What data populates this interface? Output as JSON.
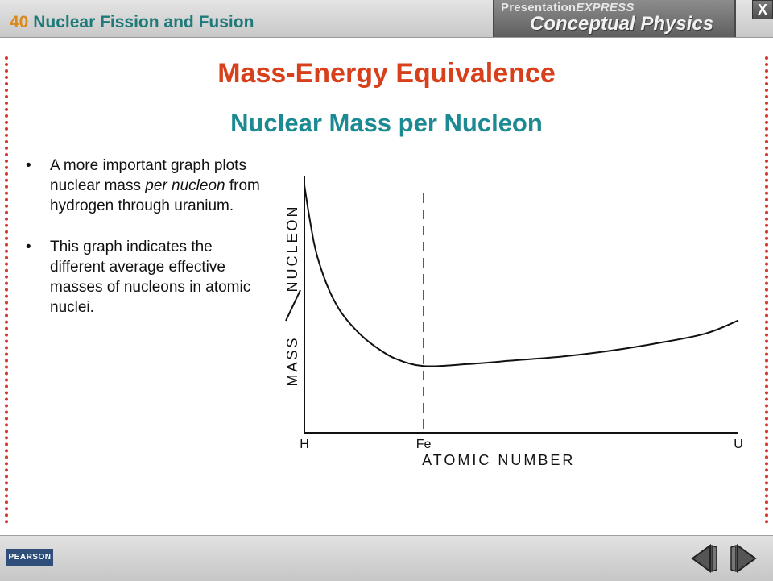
{
  "header": {
    "chapter_number": "40",
    "chapter_title": "Nuclear Fission and Fusion",
    "brand_top_a": "Presentation",
    "brand_top_b": "EXPRESS",
    "brand_main": "Conceptual Physics",
    "close_label": "X"
  },
  "slide": {
    "title": "Mass-Energy Equivalence",
    "subtitle": "Nuclear Mass per Nucleon",
    "bullets": [
      {
        "bullet": "•",
        "parts": [
          "A more important graph plots nuclear mass ",
          "per nucleon",
          " from hydrogen through uranium."
        ]
      },
      {
        "bullet": "•",
        "parts": [
          "This graph indicates the different average effective masses of nucleons in atomic nuclei."
        ]
      }
    ]
  },
  "chart_data": {
    "type": "line",
    "title": "",
    "xlabel": "ATOMIC NUMBER",
    "ylabel": "MASS / NUCLEON",
    "ylabel_parts": [
      "MASS",
      "NUCLEON"
    ],
    "tick_labels": [
      "H",
      "Fe",
      "U"
    ],
    "x": [
      1,
      2,
      3,
      4,
      6,
      8,
      10,
      13,
      16,
      20,
      26,
      35,
      45,
      55,
      65,
      75,
      85,
      92
    ],
    "y": [
      1.0,
      0.84,
      0.7,
      0.6,
      0.46,
      0.36,
      0.29,
      0.21,
      0.15,
      0.09,
      0.05,
      0.06,
      0.08,
      0.1,
      0.13,
      0.17,
      0.22,
      0.29
    ],
    "xlim": [
      1,
      92
    ],
    "ylim": [
      -0.3,
      1.05
    ],
    "reference_line_x": 26,
    "reference_line_style": "dashed",
    "grid": false,
    "color": "#111111"
  },
  "footer": {
    "logo": "PEARSON",
    "prev_icon": "chevron-left-icon",
    "next_icon": "chevron-right-icon"
  }
}
